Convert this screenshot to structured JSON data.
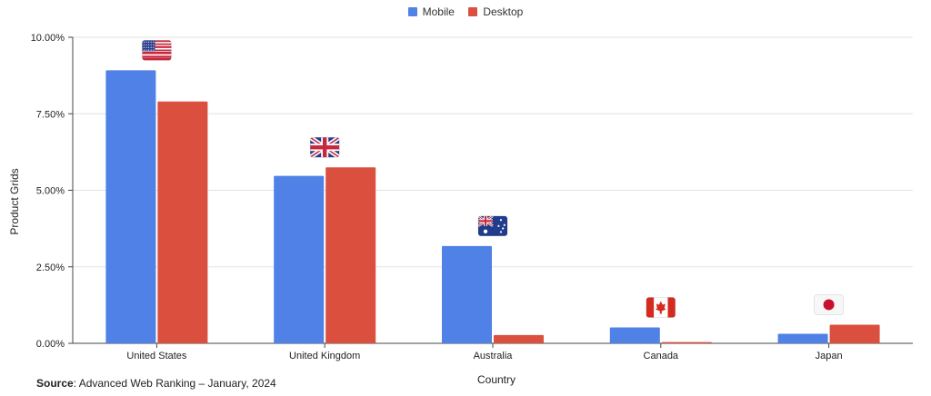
{
  "legend": {
    "mobile_label": "Mobile",
    "desktop_label": "Desktop"
  },
  "source": {
    "label": "Source",
    "text": ": Advanced Web Ranking – January, 2024"
  },
  "colors": {
    "mobile": "#4f81e6",
    "desktop": "#db4f3f",
    "grid": "#e3e3e3",
    "axis": "#444444"
  },
  "chart_data": {
    "type": "bar",
    "xlabel": "Country",
    "ylabel": "Product Grids",
    "ylim": [
      0,
      10
    ],
    "yticks": [
      "0.00%",
      "2.50%",
      "5.00%",
      "7.50%",
      "10.00%"
    ],
    "ytick_values": [
      0,
      2.5,
      5,
      7.5,
      10
    ],
    "categories": [
      "United States",
      "United Kingdom",
      "Australia",
      "Canada",
      "Japan"
    ],
    "flags": [
      "us",
      "uk",
      "au",
      "ca",
      "jp"
    ],
    "grid": true,
    "legend_position": "top-center",
    "series": [
      {
        "name": "Mobile",
        "values": [
          8.92,
          5.47,
          3.18,
          0.52,
          0.31
        ]
      },
      {
        "name": "Desktop",
        "values": [
          7.9,
          5.75,
          0.27,
          0.04,
          0.61
        ]
      }
    ]
  }
}
